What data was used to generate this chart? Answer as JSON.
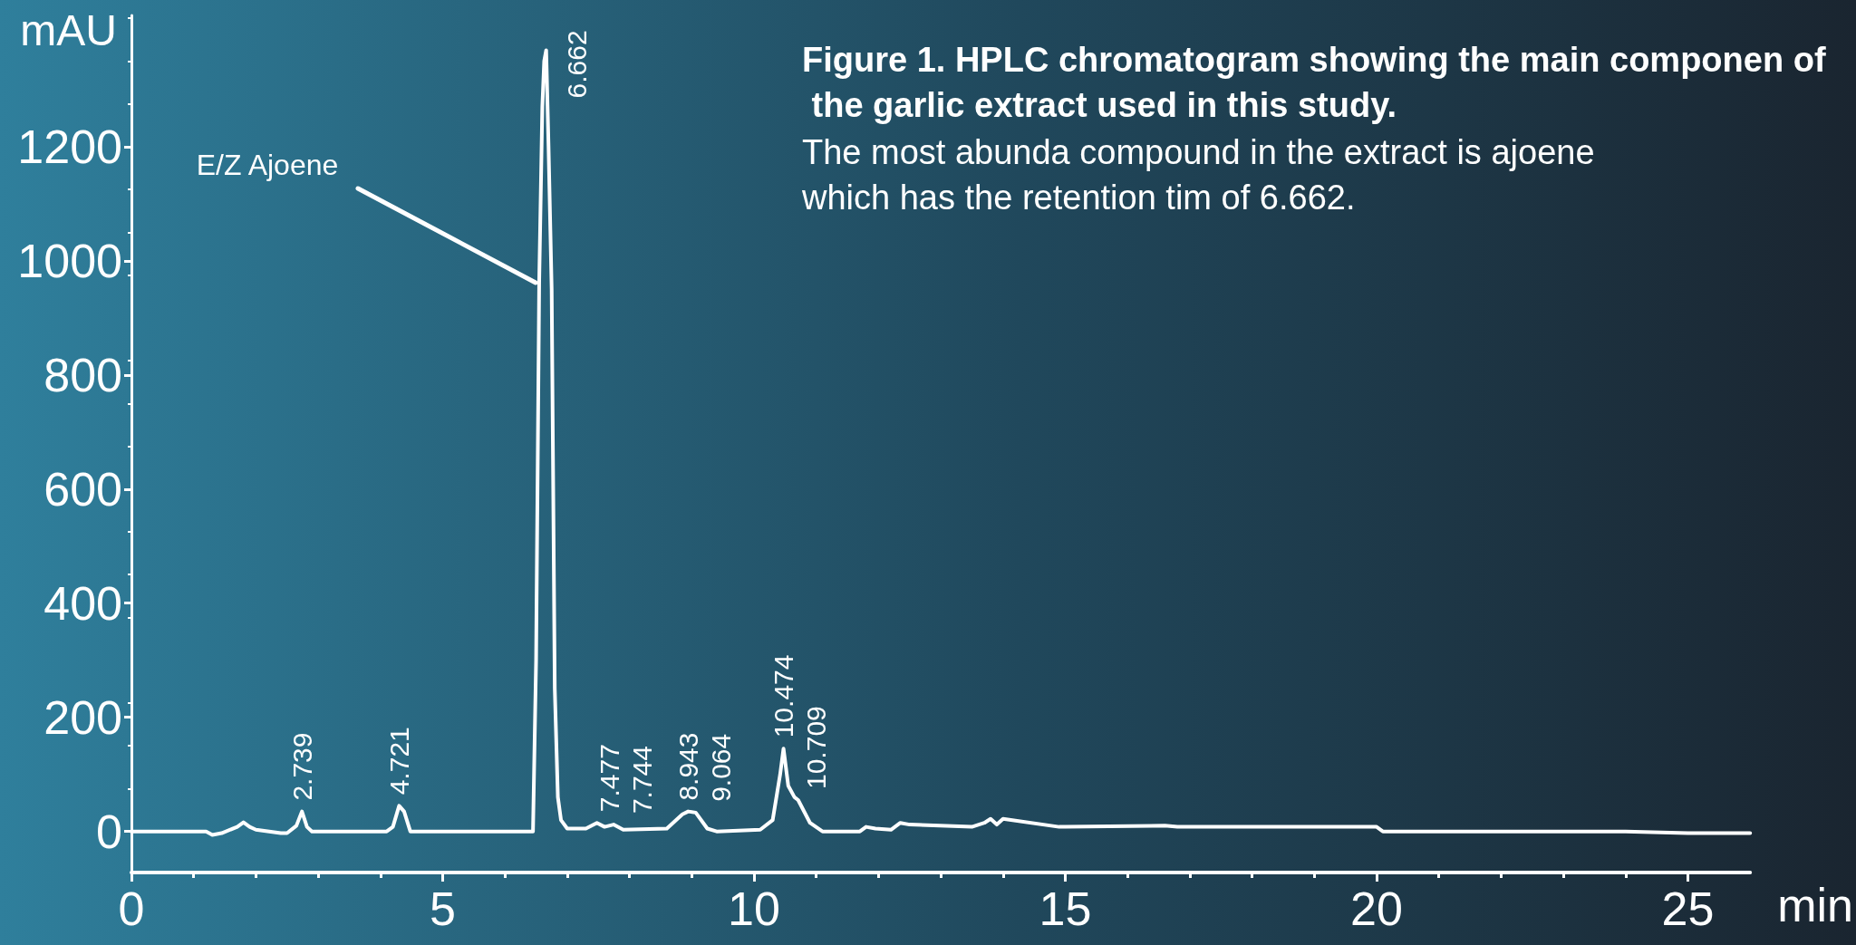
{
  "chart_data": {
    "type": "line",
    "title": "Figure 1. HPLC chromatogram showing the main componen of the garlic extract used in this study.",
    "subtitle": "The most abunda compound in the extract is ajoene which has the retention tim of 6.662.",
    "xlabel": "min",
    "ylabel": "mAU",
    "x": [
      0,
      1.2,
      1.3,
      1.45,
      1.7,
      1.8,
      1.9,
      2.0,
      2.4,
      2.5,
      2.65,
      2.739,
      2.82,
      2.9,
      4.1,
      4.2,
      4.3,
      4.38,
      4.48,
      6.45,
      6.5,
      6.55,
      6.6,
      6.63,
      6.662,
      6.7,
      6.75,
      6.8,
      6.85,
      6.9,
      7.0,
      7.3,
      7.477,
      7.6,
      7.744,
      7.9,
      8.6,
      8.85,
      8.943,
      9.064,
      9.25,
      9.4,
      10.1,
      10.3,
      10.42,
      10.474,
      10.55,
      10.65,
      10.709,
      10.9,
      11.1,
      11.7,
      11.8,
      11.95,
      12.2,
      12.35,
      12.5,
      13.5,
      13.7,
      13.8,
      13.9,
      14.0,
      14.9,
      15.0,
      16.6,
      16.8,
      20.0,
      20.1,
      24.0,
      25.0,
      26.0
    ],
    "series": [
      {
        "color": "#ffffff",
        "values": [
          0,
          0,
          -6,
          -3,
          8,
          16,
          8,
          3,
          -3,
          -3,
          10,
          35,
          8,
          0,
          0,
          8,
          45,
          35,
          0,
          0,
          300,
          964,
          1270,
          1350,
          1369,
          1200,
          950,
          250,
          60,
          20,
          5,
          5,
          15,
          8,
          12,
          3,
          5,
          30,
          35,
          33,
          5,
          0,
          3,
          20,
          100,
          145,
          80,
          60,
          55,
          15,
          0,
          0,
          8,
          5,
          3,
          15,
          12,
          8,
          15,
          22,
          12,
          22,
          8,
          8,
          10,
          8,
          8,
          0,
          0,
          -3,
          -3
        ]
      }
    ],
    "xlim": [
      0,
      26
    ],
    "xticks": [
      0,
      5,
      10,
      15,
      20,
      25
    ],
    "ylim": [
      -72,
      1430
    ],
    "yticks": [
      0,
      200,
      400,
      600,
      800,
      1000,
      1200
    ],
    "grid": false,
    "marker": "none",
    "line_style": "solid",
    "annotations": [
      {
        "text": "E/Z Ajoene",
        "x": 6.55,
        "y": 964
      },
      {
        "text": "2.739",
        "x": 2.739,
        "y": 35
      },
      {
        "text": "4.721",
        "x": 4.3,
        "y": 45
      },
      {
        "text": "6.662",
        "x": 6.662,
        "y": 1369
      },
      {
        "text": "7.477",
        "x": 7.477,
        "y": 15
      },
      {
        "text": "7.744",
        "x": 7.744,
        "y": 12
      },
      {
        "text": "8.943",
        "x": 8.943,
        "y": 35
      },
      {
        "text": "9.064",
        "x": 9.064,
        "y": 33
      },
      {
        "text": "10.474",
        "x": 10.474,
        "y": 145
      },
      {
        "text": "10.709",
        "x": 10.709,
        "y": 55
      }
    ]
  }
}
